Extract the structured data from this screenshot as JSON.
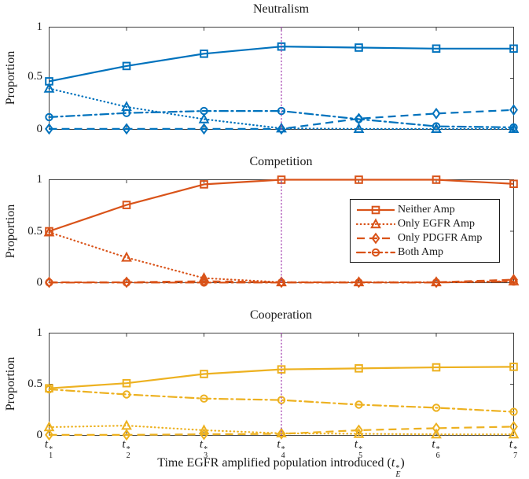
{
  "colors": {
    "blue": "#0072BD",
    "orange": "#D95319",
    "yellow": "#EDB120",
    "vline": "#A23CAE",
    "axis": "#3F3F3F",
    "text": "#1A1A1A"
  },
  "yaxis": {
    "title": "Proportion",
    "tick_labels": [
      "1",
      "0.5",
      "0"
    ]
  },
  "xaxis": {
    "t": "t",
    "star": "*",
    "subs": [
      "1",
      "2",
      "3",
      "4",
      "5",
      "6",
      "7"
    ]
  },
  "xlabel": {
    "prefix": "Time EGFR amplified population introduced (",
    "t": "t",
    "sup": "*",
    "sub": "E",
    "suffix": ")"
  },
  "legend": {
    "labels": [
      "Neither Amp",
      "Only EGFR Amp",
      "Only PDGFR Amp",
      "Both Amp"
    ]
  },
  "chart_data": [
    {
      "type": "line",
      "title": "Neutralism",
      "color": "#0072BD",
      "ylabel": "Proportion",
      "ylim": [
        0,
        1
      ],
      "yticks": [
        0,
        0.5,
        1
      ],
      "categories": [
        "t1*",
        "t2*",
        "t3*",
        "t4*",
        "t5*",
        "t6*",
        "t7*"
      ],
      "vline_at_category": "t4*",
      "series": [
        {
          "name": "Neither Amp",
          "line": "solid",
          "marker": "square",
          "values": [
            0.47,
            0.62,
            0.74,
            0.81,
            0.8,
            0.79,
            0.79
          ]
        },
        {
          "name": "Only EGFR Amp",
          "line": "dotted",
          "marker": "triangle",
          "values": [
            0.4,
            0.22,
            0.1,
            0.01,
            0.005,
            0.005,
            0.005
          ]
        },
        {
          "name": "Only PDGFR Amp",
          "line": "dashed",
          "marker": "diamond",
          "values": [
            0.005,
            0.005,
            0.005,
            0.005,
            0.105,
            0.155,
            0.19
          ]
        },
        {
          "name": "Both Amp",
          "line": "dashdot",
          "marker": "circle",
          "values": [
            0.12,
            0.16,
            0.18,
            0.18,
            0.1,
            0.03,
            0.02
          ]
        }
      ]
    },
    {
      "type": "line",
      "title": "Competition",
      "color": "#D95319",
      "ylabel": "Proportion",
      "ylim": [
        0,
        1
      ],
      "yticks": [
        0,
        0.5,
        1
      ],
      "categories": [
        "t1*",
        "t2*",
        "t3*",
        "t4*",
        "t5*",
        "t6*",
        "t7*"
      ],
      "vline_at_category": "t4*",
      "series": [
        {
          "name": "Neither Amp",
          "line": "solid",
          "marker": "square",
          "values": [
            0.5,
            0.755,
            0.955,
            1.0,
            1.0,
            1.0,
            0.96
          ]
        },
        {
          "name": "Only EGFR Amp",
          "line": "dotted",
          "marker": "triangle",
          "values": [
            0.49,
            0.245,
            0.045,
            0.005,
            0.005,
            0.005,
            0.015
          ]
        },
        {
          "name": "Only PDGFR Amp",
          "line": "dashed",
          "marker": "diamond",
          "values": [
            0.005,
            0.005,
            0.015,
            0.005,
            0.005,
            0.005,
            0.03
          ]
        },
        {
          "name": "Both Amp",
          "line": "dashdot",
          "marker": "circle",
          "values": [
            0.002,
            0.002,
            0.002,
            0.002,
            0.002,
            0.002,
            0.012
          ]
        }
      ]
    },
    {
      "type": "line",
      "title": "Cooperation",
      "color": "#EDB120",
      "ylabel": "Proportion",
      "ylim": [
        0,
        1
      ],
      "yticks": [
        0,
        0.5,
        1
      ],
      "categories": [
        "t1*",
        "t2*",
        "t3*",
        "t4*",
        "t5*",
        "t6*",
        "t7*"
      ],
      "vline_at_category": "t4*",
      "series": [
        {
          "name": "Neither Amp",
          "line": "solid",
          "marker": "square",
          "values": [
            0.46,
            0.51,
            0.6,
            0.645,
            0.655,
            0.665,
            0.67
          ]
        },
        {
          "name": "Only EGFR Amp",
          "line": "dotted",
          "marker": "triangle",
          "values": [
            0.08,
            0.095,
            0.05,
            0.02,
            0.015,
            0.01,
            0.01
          ]
        },
        {
          "name": "Only PDGFR Amp",
          "line": "dashed",
          "marker": "diamond",
          "values": [
            0.005,
            0.005,
            0.01,
            0.015,
            0.05,
            0.07,
            0.085
          ]
        },
        {
          "name": "Both Amp",
          "line": "dashdot",
          "marker": "circle",
          "values": [
            0.45,
            0.4,
            0.36,
            0.345,
            0.3,
            0.27,
            0.23
          ]
        }
      ]
    }
  ]
}
